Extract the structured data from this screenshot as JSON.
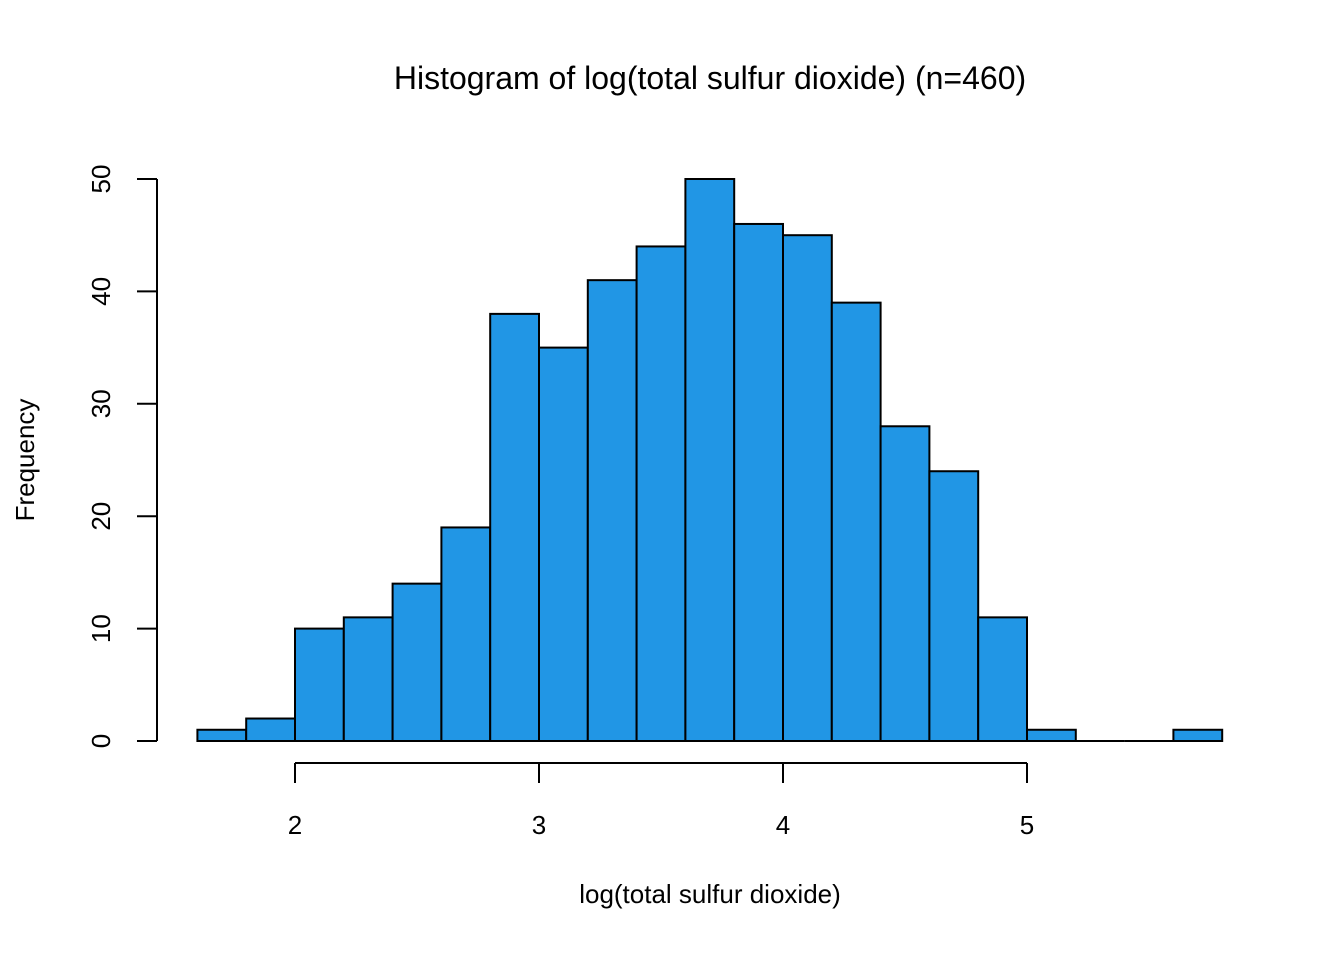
{
  "chart_data": {
    "type": "bar",
    "title": "Histogram of log(total sulfur dioxide) (n=460)",
    "xlabel": "log(total sulfur dioxide)",
    "ylabel": "Frequency",
    "bar_color": "#2196E5",
    "bin_edges": [
      1.6,
      1.8,
      2.0,
      2.2,
      2.4,
      2.6,
      2.8,
      3.0,
      3.2,
      3.4,
      3.6,
      3.8,
      4.0,
      4.2,
      4.4,
      4.6,
      4.8,
      5.0,
      5.2,
      5.4,
      5.6,
      5.8
    ],
    "values": [
      1,
      2,
      10,
      11,
      14,
      19,
      38,
      35,
      41,
      44,
      50,
      46,
      45,
      39,
      28,
      24,
      11,
      1,
      0,
      0,
      1
    ],
    "xlim": [
      1.6,
      5.8
    ],
    "ylim": [
      0,
      50
    ],
    "x_ticks": [
      2,
      3,
      4,
      5
    ],
    "x_tick_labels": [
      "2",
      "3",
      "4",
      "5"
    ],
    "y_ticks": [
      0,
      10,
      20,
      30,
      40,
      50
    ],
    "y_tick_labels": [
      "0",
      "10",
      "20",
      "30",
      "40",
      "50"
    ],
    "grid": false,
    "legend": "none"
  }
}
